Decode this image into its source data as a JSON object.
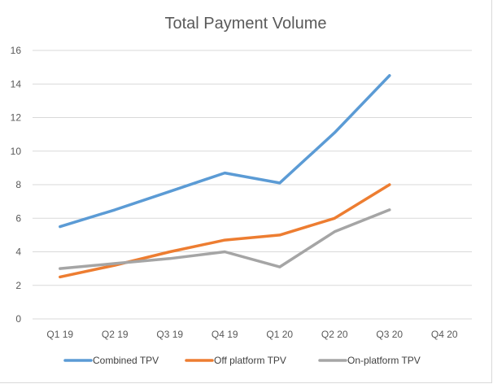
{
  "chart_data": {
    "type": "line",
    "title": "Total Payment Volume",
    "xlabel": "",
    "ylabel": "",
    "categories": [
      "Q1 19",
      "Q2 19",
      "Q3 19",
      "Q4 19",
      "Q1 20",
      "Q2 20",
      "Q3 20",
      "Q4 20"
    ],
    "ylim": [
      0,
      16
    ],
    "yticks": [
      0,
      2,
      4,
      6,
      8,
      10,
      12,
      14,
      16
    ],
    "grid": true,
    "legend_position": "bottom",
    "series": [
      {
        "name": "Combined TPV",
        "color": "#5b9bd5",
        "values": [
          5.5,
          6.5,
          7.6,
          8.7,
          8.1,
          11.1,
          14.5,
          null
        ]
      },
      {
        "name": "Off platform TPV",
        "color": "#ed7d31",
        "values": [
          2.5,
          3.2,
          4.0,
          4.7,
          5.0,
          6.0,
          8.0,
          null
        ]
      },
      {
        "name": "On-platform TPV",
        "color": "#a5a5a5",
        "values": [
          3.0,
          3.3,
          3.6,
          4.0,
          3.1,
          5.2,
          6.5,
          null
        ]
      }
    ]
  }
}
